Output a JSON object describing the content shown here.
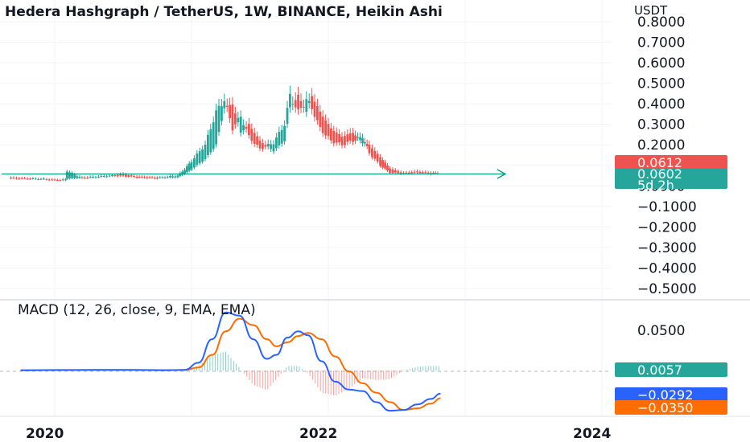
{
  "header": {
    "title": "Hedera Hashgraph / TetherUS, 1W, BINANCE, Heikin Ashi",
    "unit": "USDT"
  },
  "price_axis": {
    "labels": [
      "0.8000",
      "0.7000",
      "0.6000",
      "0.5000",
      "0.4000",
      "0.3000",
      "0.2000",
      "0.1000",
      "0.0000",
      "−0.1000",
      "−0.2000",
      "−0.3000",
      "−0.4000",
      "−0.5000"
    ]
  },
  "price_tags": {
    "last_price": "0.0612",
    "close_price": "0.0602",
    "countdown": "5d 2h"
  },
  "macd_axis": {
    "labels": [
      "0.0500"
    ]
  },
  "macd_tags": {
    "hist": "0.0057",
    "macd": "−0.0292",
    "signal": "−0.0350"
  },
  "time_axis": {
    "labels": [
      "2020",
      "2022",
      "2024"
    ]
  },
  "colors": {
    "up": "#26a69a",
    "down": "#ef5350",
    "macd_line": "#2962ff",
    "signal_line": "#ff6d00",
    "hist_up": "#b2dfdb",
    "hist_down": "#ffcdd2",
    "grid": "#f0f3fa",
    "arrow": "#089981"
  },
  "chart_data": [
    {
      "type": "candlestick",
      "title": "Hedera Hashgraph / TetherUS, 1W, BINANCE, Heikin Ashi",
      "ylabel": "USDT",
      "ylim": [
        -0.52,
        0.82
      ],
      "x_ticks": [
        "2020",
        "2022",
        "2024"
      ],
      "x_start": 2019.6,
      "x_end": 2024.25,
      "last_price": 0.0612,
      "close_price": 0.0602,
      "segments": [
        [
          2019.68,
          0.04,
          0.036
        ],
        [
          2019.9,
          0.033,
          0.034
        ],
        [
          2020.0,
          0.03,
          0.028
        ],
        [
          2020.08,
          0.027,
          0.03
        ],
        [
          2020.09,
          0.035,
          0.072
        ],
        [
          2020.2,
          0.04,
          0.038
        ],
        [
          2020.3,
          0.042,
          0.044
        ],
        [
          2020.4,
          0.048,
          0.05
        ],
        [
          2020.5,
          0.058,
          0.048
        ],
        [
          2020.6,
          0.045,
          0.042
        ],
        [
          2020.75,
          0.04,
          0.038
        ],
        [
          2020.9,
          0.042,
          0.05
        ],
        [
          2020.95,
          0.06,
          0.08
        ],
        [
          2021.0,
          0.08,
          0.12
        ],
        [
          2021.1,
          0.13,
          0.2
        ],
        [
          2021.18,
          0.2,
          0.36
        ],
        [
          2021.24,
          0.38,
          0.42
        ],
        [
          2021.3,
          0.4,
          0.28
        ],
        [
          2021.36,
          0.26,
          0.34
        ],
        [
          2021.42,
          0.3,
          0.24
        ],
        [
          2021.5,
          0.22,
          0.18
        ],
        [
          2021.6,
          0.17,
          0.21
        ],
        [
          2021.68,
          0.22,
          0.3
        ],
        [
          2021.72,
          0.38,
          0.44
        ],
        [
          2021.78,
          0.44,
          0.36
        ],
        [
          2021.84,
          0.36,
          0.42
        ],
        [
          2021.88,
          0.44,
          0.38
        ],
        [
          2021.94,
          0.36,
          0.28
        ],
        [
          2022.02,
          0.28,
          0.22
        ],
        [
          2022.1,
          0.24,
          0.2
        ],
        [
          2022.18,
          0.26,
          0.22
        ],
        [
          2022.25,
          0.21,
          0.24
        ],
        [
          2022.3,
          0.2,
          0.16
        ],
        [
          2022.38,
          0.14,
          0.1
        ],
        [
          2022.45,
          0.085,
          0.065
        ],
        [
          2022.55,
          0.062,
          0.06
        ],
        [
          2022.65,
          0.07,
          0.065
        ],
        [
          2022.75,
          0.063,
          0.06
        ],
        [
          2022.8,
          0.061,
          0.0612
        ]
      ]
    },
    {
      "type": "line",
      "title": "MACD (12, 26, close, 9, EMA, EMA)",
      "series": [
        {
          "name": "MACD",
          "x": [
            2019.75,
            2020.0,
            2020.3,
            2020.55,
            2020.8,
            2020.95,
            2021.05,
            2021.15,
            2021.25,
            2021.35,
            2021.45,
            2021.55,
            2021.62,
            2021.7,
            2021.78,
            2021.85,
            2021.95,
            2022.05,
            2022.15,
            2022.25,
            2022.35,
            2022.45,
            2022.55,
            2022.65,
            2022.75,
            2022.82
          ],
          "values": [
            0.0005,
            0.0008,
            0.001,
            0.001,
            0.0005,
            0.001,
            0.01,
            0.04,
            0.074,
            0.07,
            0.04,
            0.015,
            0.02,
            0.042,
            0.05,
            0.045,
            0.012,
            -0.014,
            -0.024,
            -0.026,
            -0.04,
            -0.051,
            -0.05,
            -0.043,
            -0.036,
            -0.0292
          ]
        },
        {
          "name": "Signal",
          "x": [
            2019.75,
            2020.0,
            2020.3,
            2020.55,
            2020.8,
            2020.95,
            2021.05,
            2021.15,
            2021.25,
            2021.35,
            2021.45,
            2021.55,
            2021.62,
            2021.7,
            2021.78,
            2021.85,
            2021.95,
            2022.05,
            2022.15,
            2022.25,
            2022.35,
            2022.45,
            2022.55,
            2022.65,
            2022.75,
            2022.82
          ],
          "values": [
            0.0005,
            0.0006,
            0.0008,
            0.0009,
            0.0007,
            0.0008,
            0.004,
            0.02,
            0.05,
            0.066,
            0.058,
            0.04,
            0.031,
            0.036,
            0.044,
            0.048,
            0.04,
            0.018,
            -0.001,
            -0.016,
            -0.028,
            -0.04,
            -0.05,
            -0.048,
            -0.042,
            -0.035
          ]
        },
        {
          "name": "Histogram",
          "x": [
            2019.75,
            2020.0,
            2020.3,
            2020.55,
            2020.8,
            2020.95,
            2021.05,
            2021.15,
            2021.25,
            2021.35,
            2021.45,
            2021.55,
            2021.62,
            2021.7,
            2021.78,
            2021.85,
            2021.95,
            2022.05,
            2022.15,
            2022.25,
            2022.35,
            2022.45,
            2022.55,
            2022.65,
            2022.75,
            2022.82
          ],
          "values": [
            0.0,
            0.0002,
            0.0002,
            0.0001,
            -0.0002,
            0.0002,
            0.006,
            0.02,
            0.024,
            0.004,
            -0.018,
            -0.025,
            -0.011,
            0.006,
            0.006,
            -0.003,
            -0.028,
            -0.032,
            -0.023,
            -0.01,
            -0.012,
            -0.011,
            0.0,
            0.005,
            0.006,
            0.0057
          ]
        }
      ],
      "ylim": [
        -0.056,
        0.083
      ],
      "reference_lines": [
        0.0
      ]
    }
  ]
}
